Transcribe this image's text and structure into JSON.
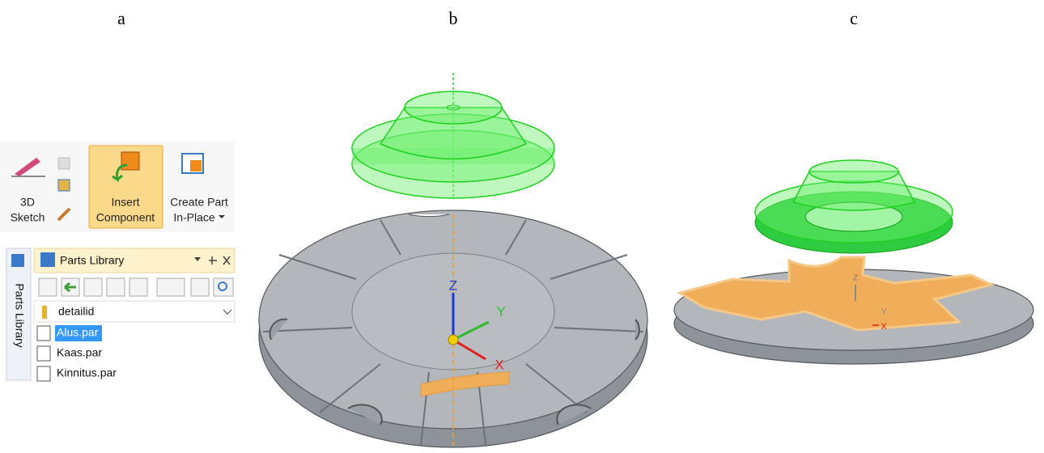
{
  "panel_labels": [
    "a",
    "b",
    "c"
  ],
  "ribbon": {
    "buttons": [
      {
        "lines": [
          "3D",
          "Sketch"
        ]
      },
      {
        "lines": [
          "Insert",
          "Component"
        ]
      },
      {
        "lines": [
          "Create Part",
          "In-Place"
        ]
      }
    ]
  },
  "parts_library": {
    "side_tab": "Parts Library",
    "title": "Parts Library",
    "folder": "detailid",
    "files": [
      "Alus.par",
      "Kaas.par",
      "Kinnitus.par"
    ]
  },
  "view_b": {
    "axes": {
      "z": "Z",
      "y": "Y",
      "x": "X"
    }
  },
  "view_c": {
    "axes": {
      "z": "Z",
      "y": "Y",
      "x": "X"
    }
  }
}
